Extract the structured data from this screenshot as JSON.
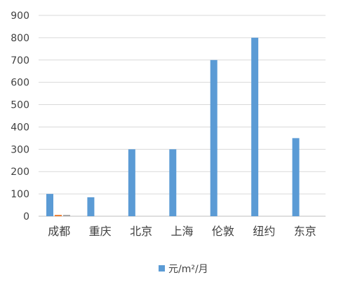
{
  "chart_data": {
    "type": "bar",
    "categories": [
      "成都",
      "重庆",
      "北京",
      "上海",
      "伦敦",
      "纽约",
      "东京"
    ],
    "series": [
      {
        "name": "元/m²/月",
        "values": [
          100,
          85,
          300,
          300,
          700,
          800,
          350
        ],
        "color": "#5b9bd5"
      },
      {
        "name": "",
        "values": [
          6,
          0,
          0,
          0,
          0,
          0,
          0
        ],
        "color": "#ed7d31"
      },
      {
        "name": "",
        "values": [
          6,
          0,
          0,
          0,
          0,
          0,
          0
        ],
        "color": "#a5a5a5"
      }
    ],
    "yticks": [
      0,
      100,
      200,
      300,
      400,
      500,
      600,
      700,
      800,
      900
    ],
    "ylim": [
      0,
      900
    ],
    "grid": true,
    "legend_position": "bottom",
    "title": "",
    "xlabel": "",
    "ylabel": ""
  }
}
